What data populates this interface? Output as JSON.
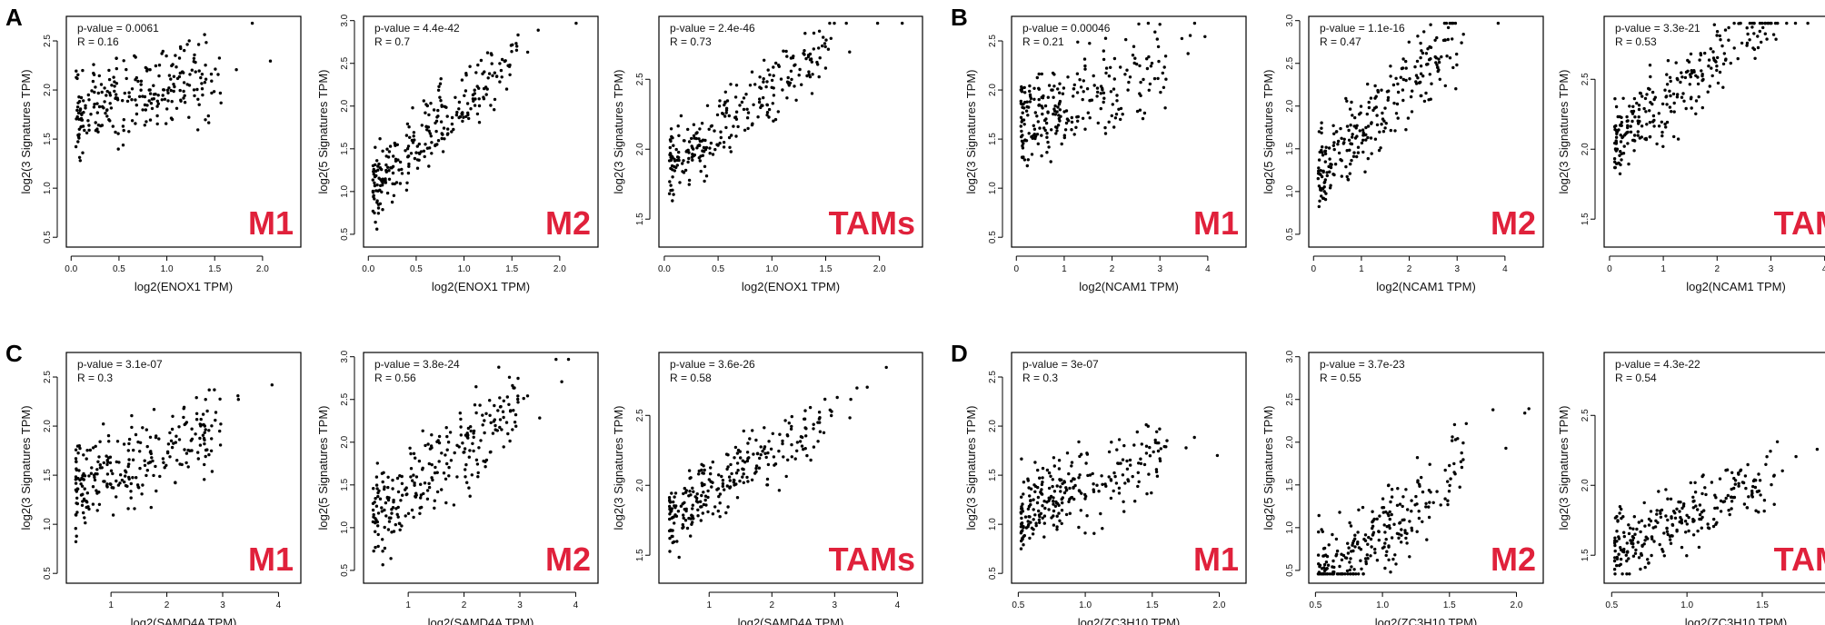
{
  "colors": {
    "label": "#e0213b",
    "ink": "#000000"
  },
  "chart_data": [
    {
      "panel": "A",
      "type": "scatter",
      "gene_label": "log2(ENOX1 TPM)",
      "xticks": [
        "0.0",
        "0.5",
        "1.0",
        "1.5",
        "2.0"
      ],
      "xlim": [
        -0.05,
        2.4
      ],
      "cells": [
        {
          "cell": "M1",
          "ylabel": "log2(3 Signatures TPM)",
          "yticks": [
            "0.5",
            "1.0",
            "1.5",
            "2.0",
            "2.5"
          ],
          "ylim": [
            0.4,
            2.75
          ],
          "pvalue": "p-value = 0.0061",
          "r": "R = 0.16",
          "center": 1.75,
          "slope": 0.25,
          "noise": 0.38
        },
        {
          "cell": "M2",
          "ylabel": "log2(5 Signatures TPM)",
          "yticks": [
            "0.5",
            "1.0",
            "1.5",
            "2.0",
            "2.5",
            "3.0"
          ],
          "ylim": [
            0.35,
            3.05
          ],
          "pvalue": "p-value = 4.4e-42",
          "r": "R = 0.7",
          "center": 0.9,
          "slope": 1.1,
          "noise": 0.35
        },
        {
          "cell": "TAMs",
          "ylabel": "log2(3 Signatures TPM)",
          "yticks": [
            "1.5",
            "2.0",
            "2.5"
          ],
          "ylim": [
            1.3,
            2.95
          ],
          "pvalue": "p-value = 2.4e-46",
          "r": "R = 0.73",
          "center": 1.8,
          "slope": 0.6,
          "noise": 0.2
        }
      ]
    },
    {
      "panel": "B",
      "type": "scatter",
      "gene_label": "log2(NCAM1 TPM)",
      "xticks": [
        "0",
        "1",
        "2",
        "3",
        "4"
      ],
      "xlim": [
        -0.1,
        4.8
      ],
      "cells": [
        {
          "cell": "M1",
          "ylabel": "log2(3 Signatures TPM)",
          "yticks": [
            "0.5",
            "1.0",
            "1.5",
            "2.0",
            "2.5"
          ],
          "ylim": [
            0.4,
            2.75
          ],
          "pvalue": "p-value = 0.00046",
          "r": "R = 0.21",
          "center": 1.6,
          "slope": 0.2,
          "noise": 0.38
        },
        {
          "cell": "M2",
          "ylabel": "log2(5 Signatures TPM)",
          "yticks": [
            "0.5",
            "1.0",
            "1.5",
            "2.0",
            "2.5",
            "3.0"
          ],
          "ylim": [
            0.35,
            3.05
          ],
          "pvalue": "p-value = 1.1e-16",
          "r": "R = 0.47",
          "center": 1.1,
          "slope": 0.55,
          "noise": 0.45
        },
        {
          "cell": "TAMs",
          "ylabel": "log2(3 Signatures TPM)",
          "yticks": [
            "1.5",
            "2.0",
            "2.5"
          ],
          "ylim": [
            1.3,
            2.95
          ],
          "pvalue": "p-value = 3.3e-21",
          "r": "R = 0.53",
          "center": 2.0,
          "slope": 0.3,
          "noise": 0.22
        }
      ]
    },
    {
      "panel": "C",
      "type": "scatter",
      "gene_label": "log2(SAMD4A TPM)",
      "xticks": [
        "1",
        "2",
        "3",
        "4"
      ],
      "xlim": [
        0.2,
        4.4
      ],
      "cells": [
        {
          "cell": "M1",
          "ylabel": "log2(3 Signatures TPM)",
          "yticks": [
            "0.5",
            "1.0",
            "1.5",
            "2.0",
            "2.5"
          ],
          "ylim": [
            0.4,
            2.75
          ],
          "pvalue": "p-value = 3.1e-07",
          "r": "R = 0.3",
          "center": 1.3,
          "slope": 0.25,
          "noise": 0.35
        },
        {
          "cell": "M2",
          "ylabel": "log2(5 Signatures TPM)",
          "yticks": [
            "0.5",
            "1.0",
            "1.5",
            "2.0",
            "2.5",
            "3.0"
          ],
          "ylim": [
            0.35,
            3.05
          ],
          "pvalue": "p-value = 3.8e-24",
          "r": "R = 0.56",
          "center": 1.0,
          "slope": 0.5,
          "noise": 0.45
        },
        {
          "cell": "TAMs",
          "ylabel": "log2(3 Signatures TPM)",
          "yticks": [
            "1.5",
            "2.0",
            "2.5"
          ],
          "ylim": [
            1.3,
            2.95
          ],
          "pvalue": "p-value = 3.6e-26",
          "r": "R = 0.58",
          "center": 1.7,
          "slope": 0.3,
          "noise": 0.2
        }
      ]
    },
    {
      "panel": "D",
      "type": "scatter",
      "gene_label": "log2(ZC3H10 TPM)",
      "xticks": [
        "0.5",
        "1.0",
        "1.5",
        "2.0"
      ],
      "xlim": [
        0.45,
        2.2
      ],
      "cells": [
        {
          "cell": "M1",
          "ylabel": "log2(3 Signatures TPM)",
          "yticks": [
            "0.5",
            "1.0",
            "1.5",
            "2.0",
            "2.5"
          ],
          "ylim": [
            0.4,
            2.75
          ],
          "pvalue": "p-value = 3e-07",
          "r": "R = 0.3",
          "center": 1.1,
          "slope": 0.5,
          "noise": 0.35
        },
        {
          "cell": "M2",
          "ylabel": "log2(5 Signatures TPM)",
          "yticks": [
            "0.5",
            "1.0",
            "1.5",
            "2.0",
            "2.5",
            "3.0"
          ],
          "ylim": [
            0.35,
            3.05
          ],
          "pvalue": "p-value = 3.7e-23",
          "r": "R = 0.55",
          "center": 0.3,
          "slope": 1.2,
          "noise": 0.45
        },
        {
          "cell": "TAMs",
          "ylabel": "log2(3 Signatures TPM)",
          "yticks": [
            "1.5",
            "2.0",
            "2.5"
          ],
          "ylim": [
            1.3,
            2.95
          ],
          "pvalue": "p-value = 4.3e-22",
          "r": "R = 0.54",
          "center": 1.5,
          "slope": 0.5,
          "noise": 0.2
        }
      ]
    }
  ]
}
